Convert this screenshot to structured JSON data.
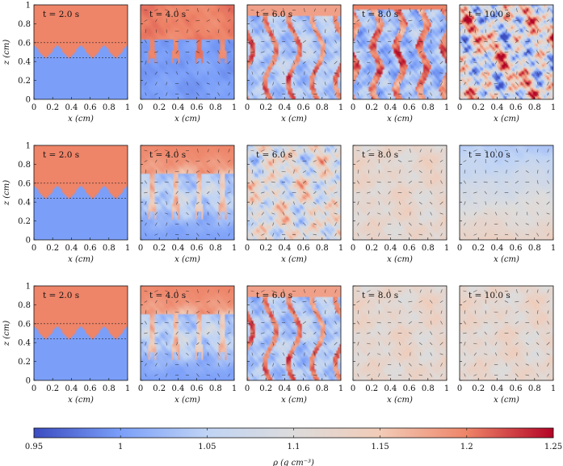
{
  "chart_data": {
    "type": "heatmap",
    "title": "",
    "xlabel": "x (cm)",
    "ylabel": "z (cm)",
    "xlim": [
      0,
      1
    ],
    "ylim": [
      0,
      1
    ],
    "xticks": [
      "0",
      "0.2",
      "0.4",
      "0.6",
      "0.8",
      "1"
    ],
    "yticks": [
      "0",
      "0.2",
      "0.4",
      "0.6",
      "0.8",
      "1"
    ],
    "time_labels": [
      "t = 2.0 s",
      "t = 4.0 s",
      "t = 6.0 s",
      "t = 8.0 s",
      "t = 10.0 s"
    ],
    "rows": 3,
    "panel_states": [
      [
        "fingers-small",
        "mushrooms",
        "plumes",
        "plumes-strong",
        "turbulent-strong"
      ],
      [
        "fingers-small",
        "mushrooms-mixing",
        "turbulent",
        "mixed",
        "mixed-gradient"
      ],
      [
        "fingers-small",
        "mushrooms-mixing",
        "plumes",
        "mixed",
        "mixed"
      ]
    ],
    "colorbar": {
      "label": "ρ (g cm⁻³)",
      "min": 0.95,
      "max": 1.25,
      "ticks": [
        "0.95",
        "1",
        "1.05",
        "1.1",
        "1.15",
        "1.2",
        "1.25"
      ],
      "colors": [
        "#3b4cc0",
        "#7b9ff9",
        "#c0d4f5",
        "#dddcdc",
        "#f2cbb7",
        "#ee8468",
        "#b40426"
      ]
    },
    "density_upper": 1.2,
    "density_lower": 1.0
  }
}
